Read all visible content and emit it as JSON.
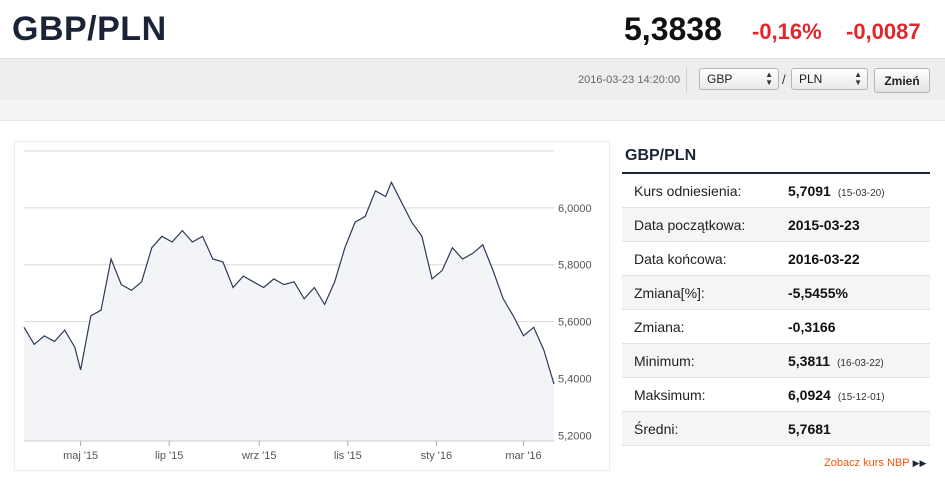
{
  "header": {
    "pair": "GBP/PLN",
    "price": "5,3838",
    "change_pct": "-0,16%",
    "change_abs": "-0,0087"
  },
  "toolbar": {
    "timestamp": "2016-03-23 14:20:00",
    "from_currency": "GBP",
    "separator": "/",
    "to_currency": "PLN",
    "change_button": "Zmień"
  },
  "stats": {
    "title": "GBP/PLN",
    "rows": [
      {
        "label": "Kurs odniesienia:",
        "value": "5,7091",
        "date": "(15-03-20)"
      },
      {
        "label": "Data początkowa:",
        "value": "2015-03-23",
        "date": ""
      },
      {
        "label": "Data końcowa:",
        "value": "2016-03-22",
        "date": ""
      },
      {
        "label": "Zmiana[%]:",
        "value": "-5,5455%",
        "date": ""
      },
      {
        "label": "Zmiana:",
        "value": "-0,3166",
        "date": ""
      },
      {
        "label": "Minimum:",
        "value": "5,3811",
        "date": "(16-03-22)"
      },
      {
        "label": "Maksimum:",
        "value": "6,0924",
        "date": "(15-12-01)"
      },
      {
        "label": "Średni:",
        "value": "5,7681",
        "date": ""
      }
    ]
  },
  "nbp_link": "Zobacz kurs NBP",
  "chart_data": {
    "type": "line",
    "title": "",
    "xlabel": "",
    "ylabel": "",
    "x_tick_labels": [
      "maj '15",
      "lip '15",
      "wrz '15",
      "lis '15",
      "sty '16",
      "mar '16"
    ],
    "x_tick_dates": [
      "2015-05-01",
      "2015-07-01",
      "2015-09-01",
      "2015-11-01",
      "2016-01-01",
      "2016-03-01"
    ],
    "y_tick_labels": [
      "5,2000",
      "5,4000",
      "5,6000",
      "5,8000",
      "6,0000"
    ],
    "y_ticks": [
      5.2,
      5.4,
      5.6,
      5.8,
      6.0
    ],
    "xlim": [
      "2015-03-23",
      "2016-03-22"
    ],
    "ylim": [
      5.18,
      6.2
    ],
    "grid": true,
    "line_color": "#2d3a55",
    "fill_color": "#f3f4f7",
    "series": [
      {
        "x": [
          "2015-03-23",
          "2015-03-30",
          "2015-04-06",
          "2015-04-13",
          "2015-04-20",
          "2015-04-27",
          "2015-05-01",
          "2015-05-08",
          "2015-05-15",
          "2015-05-22",
          "2015-05-29",
          "2015-06-05",
          "2015-06-12",
          "2015-06-19",
          "2015-06-26",
          "2015-07-03",
          "2015-07-10",
          "2015-07-17",
          "2015-07-24",
          "2015-07-31",
          "2015-08-07",
          "2015-08-14",
          "2015-08-21",
          "2015-08-28",
          "2015-09-04",
          "2015-09-11",
          "2015-09-18",
          "2015-09-25",
          "2015-10-02",
          "2015-10-09",
          "2015-10-16",
          "2015-10-23",
          "2015-10-30",
          "2015-11-06",
          "2015-11-13",
          "2015-11-20",
          "2015-11-27",
          "2015-12-01",
          "2015-12-08",
          "2015-12-15",
          "2015-12-22",
          "2015-12-29",
          "2016-01-05",
          "2016-01-12",
          "2016-01-19",
          "2016-01-26",
          "2016-02-02",
          "2016-02-09",
          "2016-02-16",
          "2016-02-23",
          "2016-03-01",
          "2016-03-08",
          "2016-03-15",
          "2016-03-22"
        ],
        "y": [
          5.58,
          5.52,
          5.55,
          5.53,
          5.57,
          5.51,
          5.43,
          5.62,
          5.64,
          5.82,
          5.73,
          5.71,
          5.74,
          5.86,
          5.9,
          5.88,
          5.92,
          5.88,
          5.9,
          5.82,
          5.81,
          5.72,
          5.76,
          5.74,
          5.72,
          5.75,
          5.73,
          5.74,
          5.68,
          5.72,
          5.66,
          5.74,
          5.86,
          5.95,
          5.97,
          6.06,
          6.04,
          6.09,
          6.02,
          5.95,
          5.9,
          5.75,
          5.78,
          5.86,
          5.82,
          5.84,
          5.87,
          5.78,
          5.68,
          5.62,
          5.55,
          5.58,
          5.5,
          5.38
        ]
      }
    ]
  }
}
